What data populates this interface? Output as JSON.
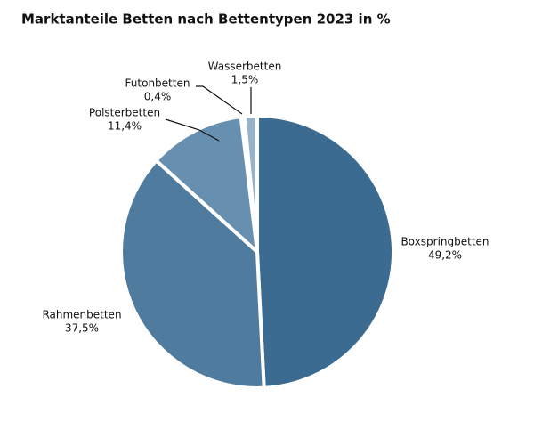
{
  "chart_data": {
    "type": "pie",
    "title": "Marktanteile Betten nach Bettentypen 2023 in %",
    "categories": [
      "Boxspringbetten",
      "Rahmenbetten",
      "Polsterbetten",
      "Futonbetten",
      "Wasserbetten"
    ],
    "values": [
      49.2,
      37.5,
      11.4,
      0.4,
      1.5
    ],
    "value_labels": [
      "49,2%",
      "37,5%",
      "11,4%",
      "0,4%",
      "1,5%"
    ],
    "colors": [
      "#3b6b91",
      "#4f7b9f",
      "#6790b0",
      "#8aa9c2",
      "#97b3c9"
    ]
  }
}
